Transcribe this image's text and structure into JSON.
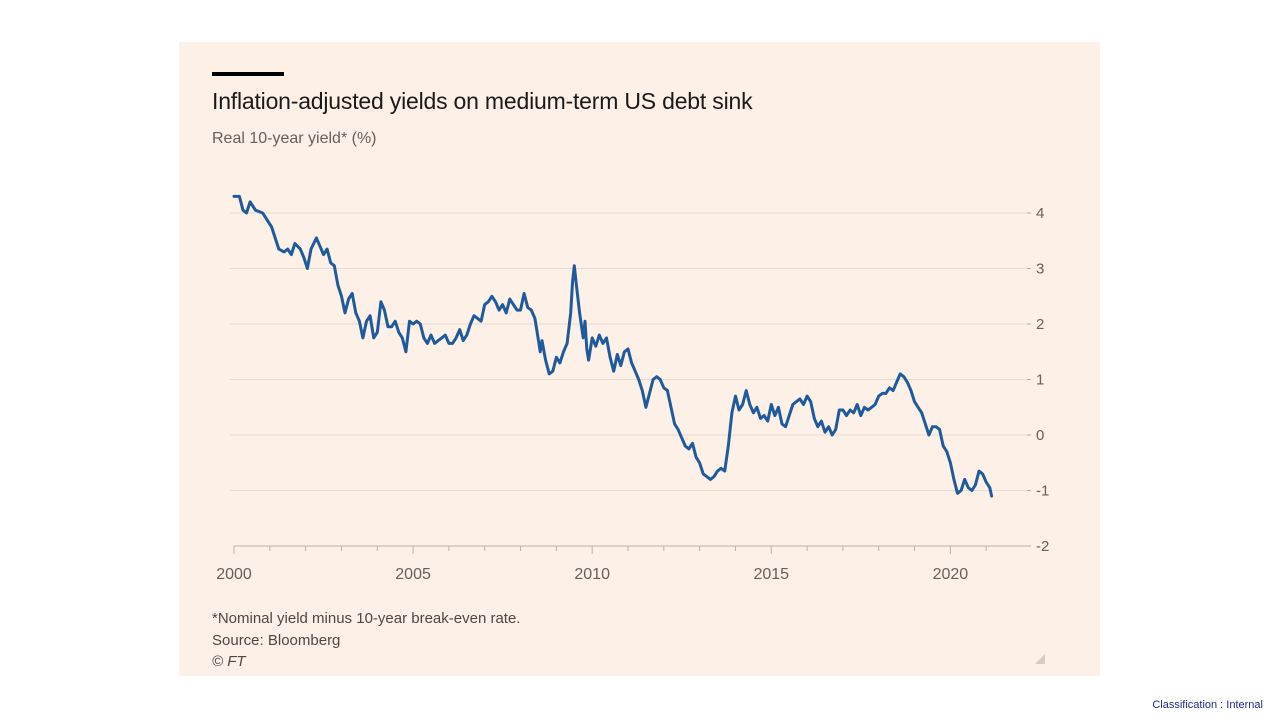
{
  "chart_data": {
    "type": "line",
    "title": "Inflation-adjusted yields on medium-term US debt sink",
    "subtitle": "Real 10-year yield* (%)",
    "xlabel": "",
    "ylabel": "Real 10-year yield* (%)",
    "xlim": [
      2000,
      2022
    ],
    "ylim": [
      -2,
      4.5
    ],
    "x_ticks": [
      2000,
      2005,
      2010,
      2015,
      2020
    ],
    "y_ticks": [
      4,
      3,
      2,
      1,
      0,
      -1,
      -2
    ],
    "grid": true,
    "series": [
      {
        "name": "Real 10-year yield",
        "color": "#1f5a9c",
        "points": [
          [
            2000.0,
            4.3
          ],
          [
            2000.15,
            4.3
          ],
          [
            2000.25,
            4.05
          ],
          [
            2000.35,
            4.0
          ],
          [
            2000.45,
            4.2
          ],
          [
            2000.6,
            4.05
          ],
          [
            2000.8,
            4.0
          ],
          [
            2000.95,
            3.85
          ],
          [
            2001.05,
            3.75
          ],
          [
            2001.15,
            3.55
          ],
          [
            2001.25,
            3.35
          ],
          [
            2001.4,
            3.3
          ],
          [
            2001.5,
            3.35
          ],
          [
            2001.6,
            3.25
          ],
          [
            2001.7,
            3.45
          ],
          [
            2001.85,
            3.35
          ],
          [
            2001.95,
            3.2
          ],
          [
            2002.05,
            3.0
          ],
          [
            2002.15,
            3.35
          ],
          [
            2002.3,
            3.55
          ],
          [
            2002.4,
            3.4
          ],
          [
            2002.5,
            3.25
          ],
          [
            2002.6,
            3.35
          ],
          [
            2002.7,
            3.1
          ],
          [
            2002.8,
            3.05
          ],
          [
            2002.9,
            2.7
          ],
          [
            2003.0,
            2.5
          ],
          [
            2003.1,
            2.2
          ],
          [
            2003.2,
            2.45
          ],
          [
            2003.3,
            2.55
          ],
          [
            2003.4,
            2.2
          ],
          [
            2003.5,
            2.05
          ],
          [
            2003.6,
            1.75
          ],
          [
            2003.7,
            2.05
          ],
          [
            2003.8,
            2.15
          ],
          [
            2003.9,
            1.75
          ],
          [
            2004.0,
            1.85
          ],
          [
            2004.1,
            2.4
          ],
          [
            2004.2,
            2.25
          ],
          [
            2004.3,
            1.95
          ],
          [
            2004.4,
            1.95
          ],
          [
            2004.5,
            2.05
          ],
          [
            2004.6,
            1.85
          ],
          [
            2004.7,
            1.75
          ],
          [
            2004.8,
            1.5
          ],
          [
            2004.9,
            2.05
          ],
          [
            2005.0,
            2.0
          ],
          [
            2005.1,
            2.05
          ],
          [
            2005.2,
            2.0
          ],
          [
            2005.3,
            1.75
          ],
          [
            2005.4,
            1.65
          ],
          [
            2005.5,
            1.8
          ],
          [
            2005.6,
            1.65
          ],
          [
            2005.7,
            1.7
          ],
          [
            2005.8,
            1.75
          ],
          [
            2005.9,
            1.8
          ],
          [
            2006.0,
            1.65
          ],
          [
            2006.1,
            1.65
          ],
          [
            2006.2,
            1.75
          ],
          [
            2006.3,
            1.9
          ],
          [
            2006.4,
            1.7
          ],
          [
            2006.5,
            1.8
          ],
          [
            2006.6,
            2.0
          ],
          [
            2006.7,
            2.15
          ],
          [
            2006.8,
            2.1
          ],
          [
            2006.9,
            2.05
          ],
          [
            2007.0,
            2.35
          ],
          [
            2007.1,
            2.4
          ],
          [
            2007.2,
            2.5
          ],
          [
            2007.3,
            2.4
          ],
          [
            2007.4,
            2.25
          ],
          [
            2007.5,
            2.35
          ],
          [
            2007.6,
            2.2
          ],
          [
            2007.7,
            2.45
          ],
          [
            2007.8,
            2.35
          ],
          [
            2007.9,
            2.25
          ],
          [
            2008.0,
            2.25
          ],
          [
            2008.1,
            2.55
          ],
          [
            2008.2,
            2.3
          ],
          [
            2008.3,
            2.25
          ],
          [
            2008.4,
            2.1
          ],
          [
            2008.5,
            1.7
          ],
          [
            2008.55,
            1.5
          ],
          [
            2008.6,
            1.7
          ],
          [
            2008.7,
            1.35
          ],
          [
            2008.8,
            1.1
          ],
          [
            2008.9,
            1.15
          ],
          [
            2009.0,
            1.4
          ],
          [
            2009.1,
            1.3
          ],
          [
            2009.2,
            1.5
          ],
          [
            2009.3,
            1.65
          ],
          [
            2009.4,
            2.2
          ],
          [
            2009.45,
            2.75
          ],
          [
            2009.5,
            3.05
          ],
          [
            2009.55,
            2.75
          ],
          [
            2009.65,
            2.2
          ],
          [
            2009.75,
            1.75
          ],
          [
            2009.8,
            2.05
          ],
          [
            2009.85,
            1.55
          ],
          [
            2009.9,
            1.35
          ],
          [
            2010.0,
            1.75
          ],
          [
            2010.1,
            1.6
          ],
          [
            2010.2,
            1.8
          ],
          [
            2010.3,
            1.65
          ],
          [
            2010.4,
            1.75
          ],
          [
            2010.5,
            1.4
          ],
          [
            2010.6,
            1.15
          ],
          [
            2010.7,
            1.45
          ],
          [
            2010.8,
            1.25
          ],
          [
            2010.9,
            1.5
          ],
          [
            2011.0,
            1.55
          ],
          [
            2011.1,
            1.3
          ],
          [
            2011.2,
            1.15
          ],
          [
            2011.3,
            1.0
          ],
          [
            2011.4,
            0.8
          ],
          [
            2011.5,
            0.5
          ],
          [
            2011.6,
            0.75
          ],
          [
            2011.7,
            1.0
          ],
          [
            2011.8,
            1.05
          ],
          [
            2011.9,
            1.0
          ],
          [
            2012.0,
            0.85
          ],
          [
            2012.1,
            0.8
          ],
          [
            2012.2,
            0.5
          ],
          [
            2012.3,
            0.2
          ],
          [
            2012.4,
            0.1
          ],
          [
            2012.5,
            -0.05
          ],
          [
            2012.6,
            -0.2
          ],
          [
            2012.7,
            -0.25
          ],
          [
            2012.8,
            -0.15
          ],
          [
            2012.9,
            -0.4
          ],
          [
            2013.0,
            -0.5
          ],
          [
            2013.1,
            -0.7
          ],
          [
            2013.2,
            -0.75
          ],
          [
            2013.3,
            -0.8
          ],
          [
            2013.4,
            -0.75
          ],
          [
            2013.5,
            -0.65
          ],
          [
            2013.6,
            -0.6
          ],
          [
            2013.7,
            -0.65
          ],
          [
            2013.8,
            -0.2
          ],
          [
            2013.9,
            0.4
          ],
          [
            2014.0,
            0.7
          ],
          [
            2014.1,
            0.45
          ],
          [
            2014.2,
            0.55
          ],
          [
            2014.3,
            0.8
          ],
          [
            2014.4,
            0.55
          ],
          [
            2014.5,
            0.4
          ],
          [
            2014.6,
            0.5
          ],
          [
            2014.7,
            0.3
          ],
          [
            2014.8,
            0.35
          ],
          [
            2014.9,
            0.25
          ],
          [
            2015.0,
            0.55
          ],
          [
            2015.1,
            0.35
          ],
          [
            2015.2,
            0.5
          ],
          [
            2015.3,
            0.2
          ],
          [
            2015.4,
            0.15
          ],
          [
            2015.5,
            0.35
          ],
          [
            2015.6,
            0.55
          ],
          [
            2015.7,
            0.6
          ],
          [
            2015.8,
            0.65
          ],
          [
            2015.9,
            0.55
          ],
          [
            2016.0,
            0.7
          ],
          [
            2016.1,
            0.6
          ],
          [
            2016.2,
            0.3
          ],
          [
            2016.3,
            0.15
          ],
          [
            2016.4,
            0.25
          ],
          [
            2016.5,
            0.05
          ],
          [
            2016.6,
            0.15
          ],
          [
            2016.7,
            0.0
          ],
          [
            2016.8,
            0.1
          ],
          [
            2016.9,
            0.45
          ],
          [
            2017.0,
            0.45
          ],
          [
            2017.1,
            0.35
          ],
          [
            2017.2,
            0.45
          ],
          [
            2017.3,
            0.4
          ],
          [
            2017.4,
            0.55
          ],
          [
            2017.5,
            0.35
          ],
          [
            2017.6,
            0.5
          ],
          [
            2017.7,
            0.45
          ],
          [
            2017.8,
            0.5
          ],
          [
            2017.9,
            0.55
          ],
          [
            2018.0,
            0.7
          ],
          [
            2018.1,
            0.75
          ],
          [
            2018.2,
            0.75
          ],
          [
            2018.3,
            0.85
          ],
          [
            2018.4,
            0.8
          ],
          [
            2018.5,
            0.95
          ],
          [
            2018.6,
            1.1
          ],
          [
            2018.7,
            1.05
          ],
          [
            2018.8,
            0.95
          ],
          [
            2018.9,
            0.8
          ],
          [
            2019.0,
            0.6
          ],
          [
            2019.1,
            0.5
          ],
          [
            2019.2,
            0.4
          ],
          [
            2019.3,
            0.2
          ],
          [
            2019.4,
            0.0
          ],
          [
            2019.5,
            0.15
          ],
          [
            2019.6,
            0.15
          ],
          [
            2019.7,
            0.1
          ],
          [
            2019.8,
            -0.2
          ],
          [
            2019.9,
            -0.3
          ],
          [
            2020.0,
            -0.5
          ],
          [
            2020.1,
            -0.8
          ],
          [
            2020.2,
            -1.05
          ],
          [
            2020.3,
            -1.0
          ],
          [
            2020.4,
            -0.8
          ],
          [
            2020.5,
            -0.95
          ],
          [
            2020.6,
            -1.0
          ],
          [
            2020.7,
            -0.9
          ],
          [
            2020.8,
            -0.65
          ],
          [
            2020.9,
            -0.7
          ],
          [
            2021.0,
            -0.85
          ],
          [
            2021.1,
            -0.95
          ],
          [
            2021.15,
            -1.1
          ]
        ]
      }
    ]
  },
  "footnote": "*Nominal yield minus 10-year break-even rate.",
  "source": "Source: Bloomberg",
  "copyright": "© FT",
  "classification": "Classification : Internal"
}
